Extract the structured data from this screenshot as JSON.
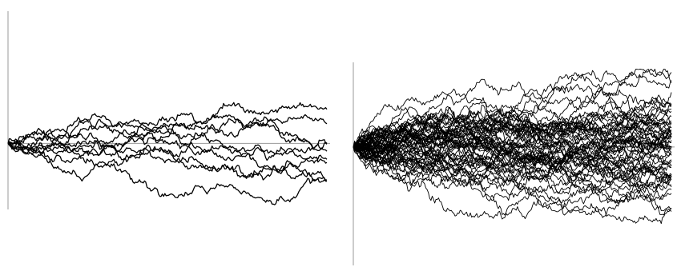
{
  "chart_data": [
    {
      "type": "line",
      "title": "",
      "xlabel": "",
      "ylabel": "",
      "grid": false,
      "legend": "none",
      "line_color": "#000000",
      "axis_color": "#999999",
      "x_range": [
        0,
        1
      ],
      "y_range": [
        -4,
        8
      ],
      "num_series": 10,
      "num_steps": 250,
      "seed": 7,
      "step_sd": 0.1
    },
    {
      "type": "line",
      "title": "",
      "xlabel": "",
      "ylabel": "",
      "grid": false,
      "legend": "none",
      "line_color": "#000000",
      "axis_color": "#999999",
      "x_range": [
        0,
        1
      ],
      "y_range": [
        -3.5,
        2.5
      ],
      "num_series": 60,
      "num_steps": 250,
      "seed": 42,
      "step_sd": 0.068
    }
  ]
}
